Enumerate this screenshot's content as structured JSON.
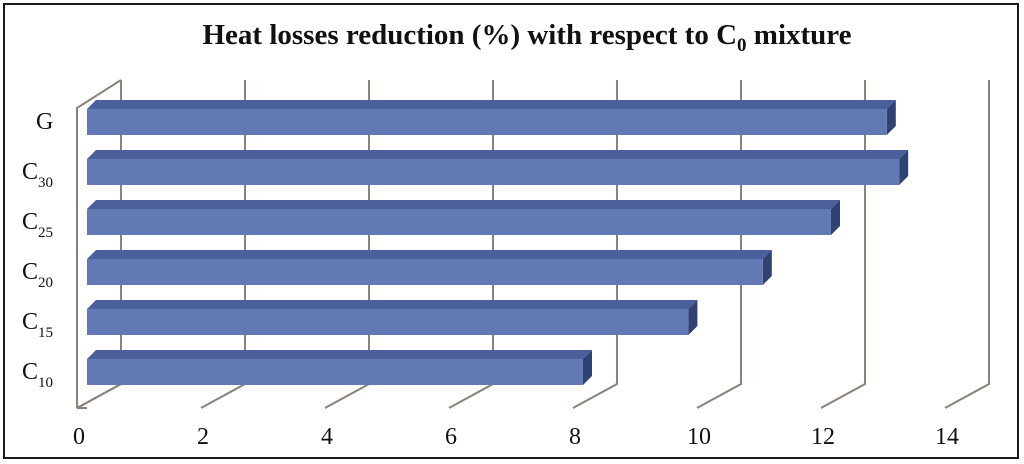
{
  "chart_data": {
    "type": "bar",
    "orientation": "horizontal",
    "title": {
      "main": "Heat losses reduction (%) with respect to C",
      "sub": "0",
      "tail": " mixture"
    },
    "categories": [
      {
        "base": "G",
        "sub": ""
      },
      {
        "base": "C",
        "sub": "30"
      },
      {
        "base": "C",
        "sub": "25"
      },
      {
        "base": "C",
        "sub": "20"
      },
      {
        "base": "C",
        "sub": "15"
      },
      {
        "base": "C",
        "sub": "10"
      }
    ],
    "values": [
      12.9,
      13.1,
      12.0,
      10.9,
      9.7,
      8.0
    ],
    "xlim": [
      0,
      14
    ],
    "xticks": [
      "0",
      "2",
      "4",
      "6",
      "8",
      "10",
      "12",
      "14"
    ],
    "xlabel": "",
    "ylabel": "",
    "grid": true,
    "style": "3d",
    "colors": {
      "bar_front": "#6379b5",
      "bar_top": "#4a5f9c",
      "bar_side": "#2f4272",
      "grid": "#8a8279"
    }
  }
}
